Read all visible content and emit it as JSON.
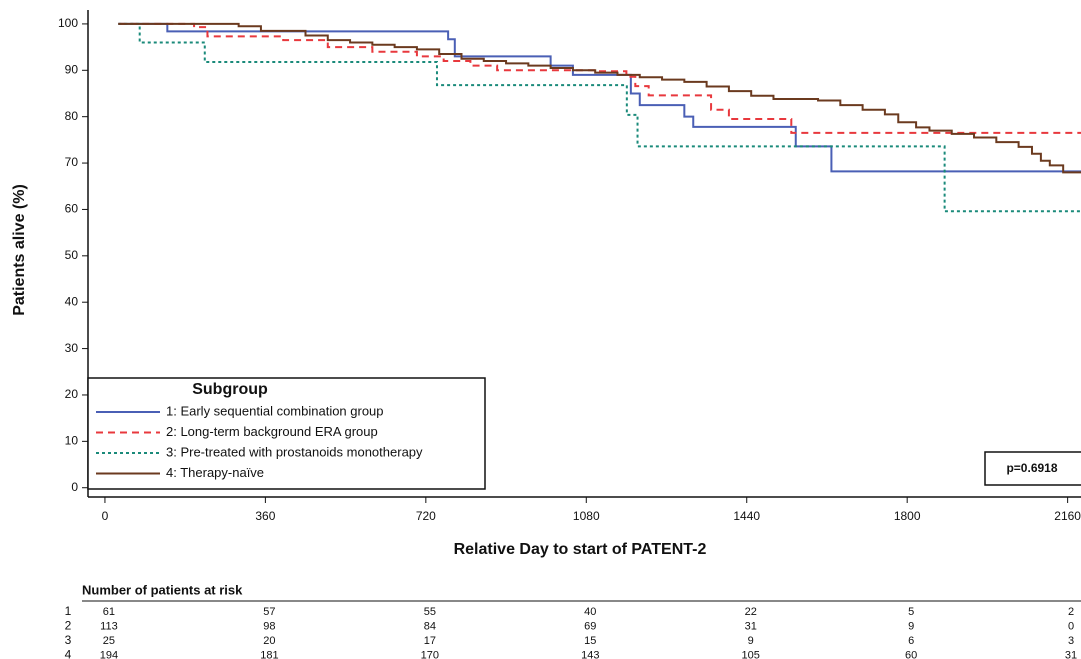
{
  "chart_data": {
    "type": "step",
    "xlabel": "Relative Day to start of PATENT-2",
    "ylabel": "Patients alive (%)",
    "xlim": [
      -38,
      2190
    ],
    "ylim": [
      -2,
      103
    ],
    "xticks": [
      0,
      360,
      720,
      1080,
      1440,
      1800,
      2160
    ],
    "yticks": [
      0,
      10,
      20,
      30,
      40,
      50,
      60,
      70,
      80,
      90,
      100
    ],
    "legend_title": "Subgroup",
    "legend_position": "lower left",
    "annotation": "p=0.6918",
    "series": [
      {
        "name": "1: Early sequential combination group",
        "color": "#4a5fb5",
        "dash": "none",
        "x": [
          30,
          140,
          770,
          785,
          1000,
          1050,
          1180,
          1200,
          1300,
          1320,
          1550,
          1630,
          2190
        ],
        "values": [
          100,
          98.4,
          96.7,
          93,
          91,
          89,
          85,
          82.5,
          80,
          77.8,
          73.6,
          68.2,
          68.2
        ]
      },
      {
        "name": "2: Long-term background ERA group",
        "color": "#e8383d",
        "dash": "7 5",
        "x": [
          30,
          200,
          230,
          400,
          500,
          600,
          700,
          760,
          820,
          880,
          1100,
          1170,
          1190,
          1220,
          1360,
          1400,
          1540,
          2190
        ],
        "values": [
          100,
          99.3,
          97.3,
          96.5,
          95,
          94,
          93,
          92,
          91,
          90,
          89.8,
          88.6,
          86.6,
          84.6,
          81.5,
          79.5,
          76.5,
          76.5
        ]
      },
      {
        "name": "3: Pre-treated with prostanoids monotherapy",
        "color": "#1a8a7a",
        "dash": "3 3",
        "x": [
          30,
          78,
          224,
          745,
          1171,
          1195,
          1884,
          2190
        ],
        "values": [
          100,
          96,
          91.8,
          86.8,
          80.4,
          73.6,
          59.6,
          59.6
        ]
      },
      {
        "name": "4: Therapy-naïve",
        "color": "#6b3a1f",
        "dash": "none",
        "x": [
          30,
          300,
          350,
          450,
          500,
          550,
          600,
          650,
          700,
          750,
          800,
          850,
          900,
          950,
          1000,
          1050,
          1100,
          1150,
          1200,
          1250,
          1300,
          1350,
          1400,
          1450,
          1500,
          1600,
          1650,
          1700,
          1750,
          1780,
          1820,
          1850,
          1900,
          1950,
          2000,
          2050,
          2080,
          2100,
          2120,
          2150,
          2190
        ],
        "values": [
          100,
          99.5,
          98.5,
          97.5,
          96.5,
          96,
          95.5,
          95,
          94.5,
          93.5,
          92.5,
          92,
          91.5,
          91,
          90.5,
          90,
          89.5,
          89,
          88.5,
          88,
          87.5,
          86.5,
          85.5,
          84.5,
          83.8,
          83.5,
          82.5,
          81.5,
          80.5,
          78.8,
          77.7,
          77,
          76.3,
          75.5,
          74.5,
          73.5,
          72,
          70.5,
          69.5,
          68,
          67.8
        ]
      }
    ],
    "risk_table": {
      "title": "Number of patients at risk",
      "rows": [
        {
          "label": "1",
          "values": [
            61,
            57,
            55,
            40,
            22,
            5,
            2
          ]
        },
        {
          "label": "2",
          "values": [
            113,
            98,
            84,
            69,
            31,
            9,
            0
          ]
        },
        {
          "label": "3",
          "values": [
            25,
            20,
            17,
            15,
            9,
            6,
            3
          ]
        },
        {
          "label": "4",
          "values": [
            194,
            181,
            170,
            143,
            105,
            60,
            31
          ]
        }
      ]
    }
  }
}
